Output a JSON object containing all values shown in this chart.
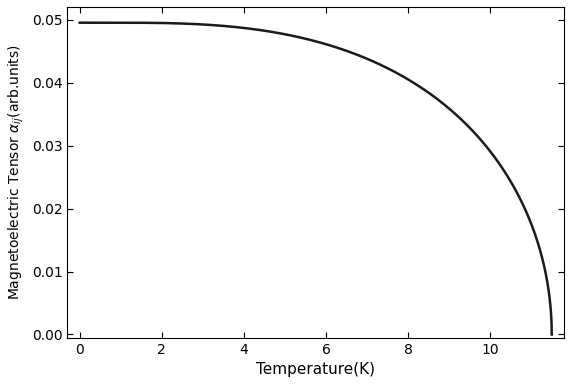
{
  "title": "",
  "xlabel": "Temperature(K)",
  "xlim": [
    -0.3,
    11.8
  ],
  "ylim": [
    -0.0005,
    0.052
  ],
  "xticks": [
    0,
    2,
    4,
    6,
    8,
    10
  ],
  "yticks": [
    0.0,
    0.01,
    0.02,
    0.03,
    0.04,
    0.05
  ],
  "T_critical": 11.5,
  "alpha_max": 0.0495,
  "curve_power_n": 2.0,
  "curve_power_q": 1.5,
  "line_color": "#1a1a1a",
  "line_width": 1.8,
  "background_color": "#ffffff",
  "figsize": [
    5.71,
    3.84
  ],
  "dpi": 100
}
